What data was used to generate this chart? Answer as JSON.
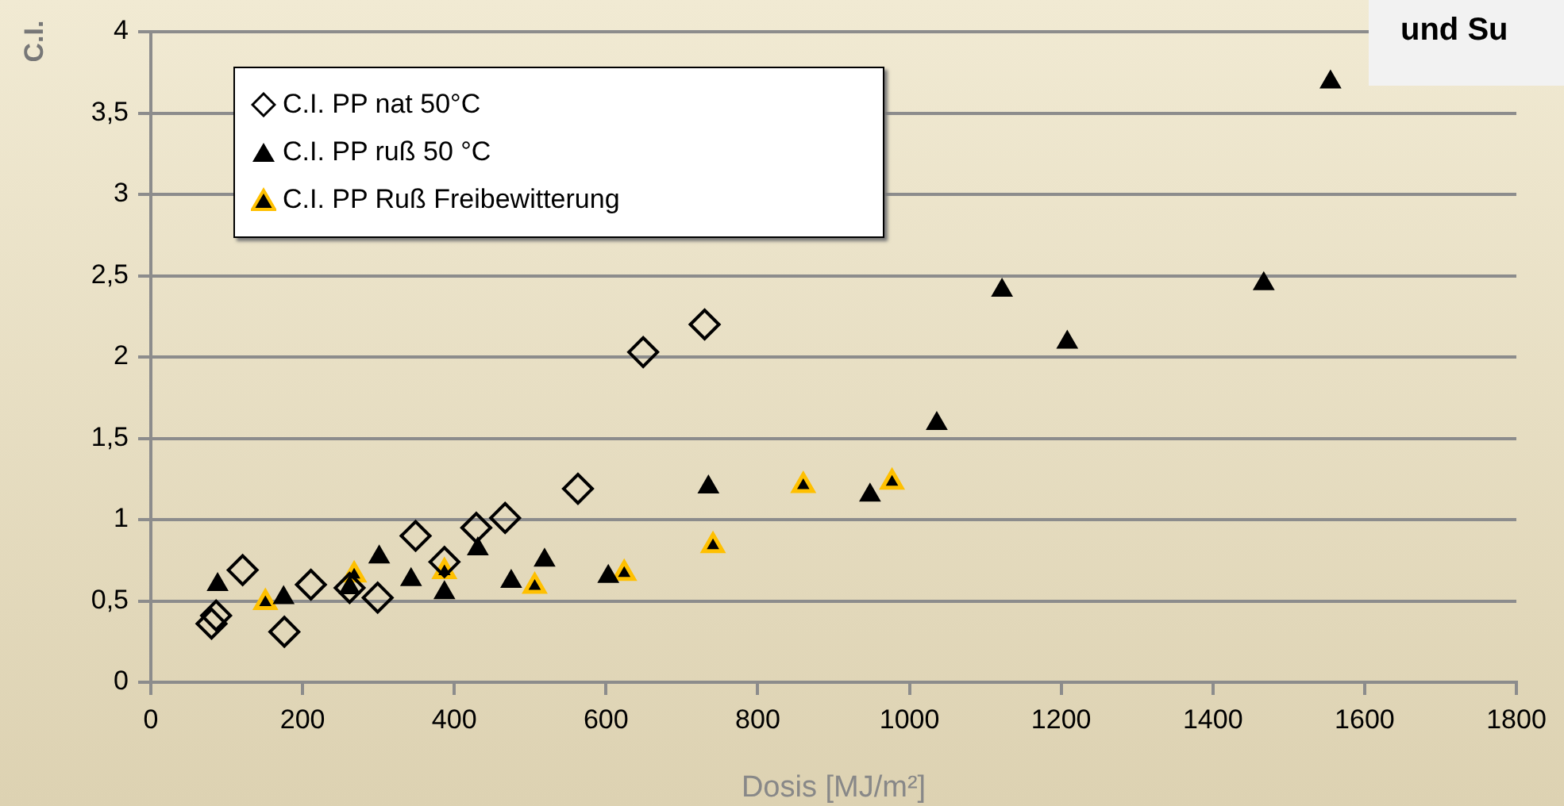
{
  "chart_data": {
    "type": "scatter",
    "xlabel": "Dosis [MJ/m²]",
    "ylabel": "C.I.",
    "xlim": [
      0,
      1800
    ],
    "xticks": [
      0,
      200,
      400,
      600,
      800,
      1000,
      1200,
      1400,
      1600,
      1800
    ],
    "ylim": [
      0,
      4
    ],
    "yticks": [
      0,
      {
        "value": 0.5,
        "label": "0,5"
      },
      1,
      {
        "value": 1.5,
        "label": "1,5"
      },
      2,
      {
        "value": 2.5,
        "label": "2,5"
      },
      3,
      {
        "value": 3.5,
        "label": "3,5"
      },
      4
    ],
    "grid": "y",
    "legend": "top left",
    "annotations": [
      "und Su"
    ],
    "series": [
      {
        "name": "C.I. PP nat 50°C",
        "color": "#000000",
        "marker": "diamond",
        "x": [
          80,
          86,
          121,
          176,
          211,
          262,
          299,
          349,
          387,
          429,
          467,
          563,
          649,
          730
        ],
        "values": [
          0.36,
          0.41,
          0.69,
          0.31,
          0.6,
          0.58,
          0.52,
          0.9,
          0.74,
          0.95,
          1.01,
          1.19,
          2.03,
          2.2
        ]
      },
      {
        "name": "C.I. PP ruß 50 °C",
        "color": "#000000",
        "marker": "triangle",
        "x": [
          88,
          175,
          262,
          301,
          343,
          387,
          431,
          475,
          519,
          603,
          735,
          948,
          1036,
          1122,
          1208,
          1467,
          1555
        ],
        "values": [
          0.6,
          0.52,
          0.58,
          0.77,
          0.63,
          0.55,
          0.82,
          0.62,
          0.75,
          0.65,
          1.2,
          1.15,
          1.59,
          2.41,
          2.09,
          2.45,
          3.69
        ]
      },
      {
        "name": "C.I. PP Ruß Freibewitterung",
        "color": "#ffc000",
        "marker": "triangle",
        "x": [
          151,
          268,
          387,
          506,
          624,
          741,
          860,
          977
        ],
        "values": [
          0.49,
          0.66,
          0.68,
          0.59,
          0.67,
          0.84,
          1.21,
          1.23
        ]
      }
    ]
  }
}
